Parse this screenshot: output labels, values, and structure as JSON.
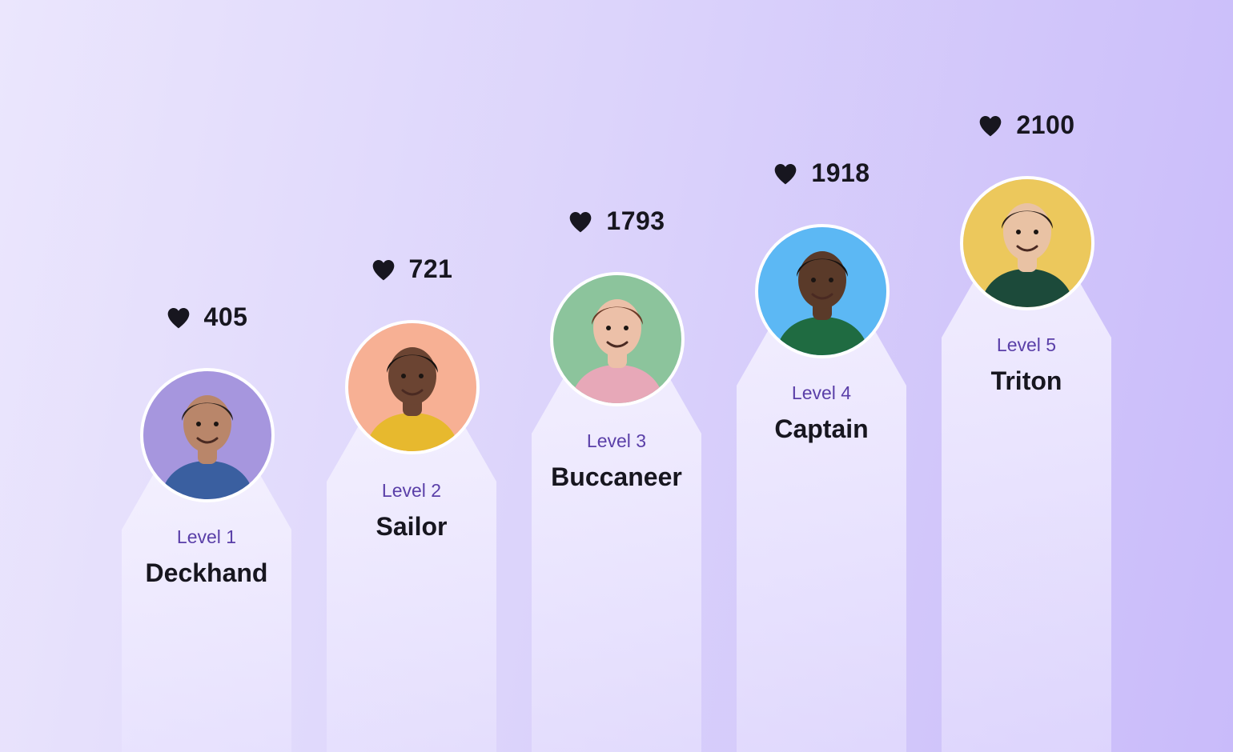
{
  "levels": [
    {
      "likes": "405",
      "level_label": "Level 1",
      "title": "Deckhand",
      "avatar_bg": "#a696de",
      "skin": "#b9866a",
      "hair": "#2a211c",
      "shirt": "#3a5fa0"
    },
    {
      "likes": "721",
      "level_label": "Level 2",
      "title": "Sailor",
      "avatar_bg": "#f7b094",
      "skin": "#6b4432",
      "hair": "#15110f",
      "shirt": "#e7b92e"
    },
    {
      "likes": "1793",
      "level_label": "Level 3",
      "title": "Buccaneer",
      "avatar_bg": "#8cc49c",
      "skin": "#ecc0a8",
      "hair": "#6a3b27",
      "shirt": "#e7a8b8"
    },
    {
      "likes": "1918",
      "level_label": "Level 4",
      "title": "Captain",
      "avatar_bg": "#5cb8f4",
      "skin": "#5a3a29",
      "hair": "#15110f",
      "shirt": "#1f6b41"
    },
    {
      "likes": "2100",
      "level_label": "Level 5",
      "title": "Triton",
      "avatar_bg": "#ecc85c",
      "skin": "#e9c2a4",
      "hair": "#2b1f19",
      "shirt": "#1c4a3a"
    }
  ],
  "icons": {
    "likes": "heart-icon"
  },
  "colors": {
    "level_text": "#5a3fa8",
    "title_text": "#17161f"
  }
}
